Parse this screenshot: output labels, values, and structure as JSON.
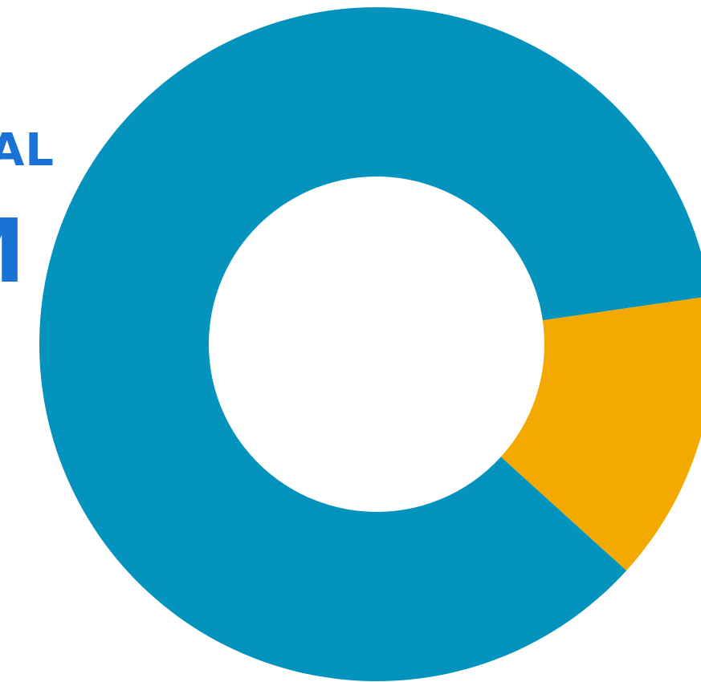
{
  "labels": {
    "line1": "AL",
    "line2": "M"
  },
  "colors": {
    "label_text": "#1a72d6",
    "background": "#ffffff"
  },
  "chart_data": {
    "type": "pie",
    "donut": true,
    "legend": "none",
    "series": [
      {
        "values": [
          86,
          14
        ],
        "colors": [
          "#0393bd",
          "#f4a901"
        ]
      }
    ]
  }
}
